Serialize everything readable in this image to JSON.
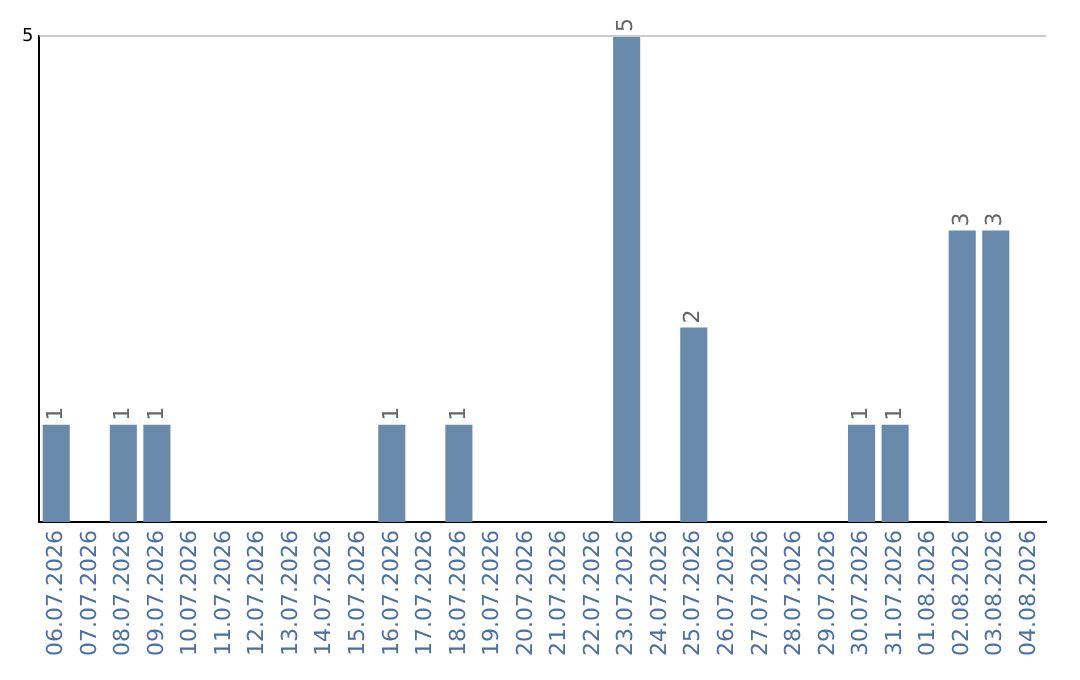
{
  "chart_data": {
    "type": "bar",
    "categories": [
      "06.07.2026",
      "07.07.2026",
      "08.07.2026",
      "09.07.2026",
      "10.07.2026",
      "11.07.2026",
      "12.07.2026",
      "13.07.2026",
      "14.07.2026",
      "15.07.2026",
      "16.07.2026",
      "17.07.2026",
      "18.07.2026",
      "19.07.2026",
      "20.07.2026",
      "21.07.2026",
      "22.07.2026",
      "23.07.2026",
      "24.07.2026",
      "25.07.2026",
      "26.07.2026",
      "27.07.2026",
      "28.07.2026",
      "29.07.2026",
      "30.07.2026",
      "31.07.2026",
      "01.08.2026",
      "02.08.2026",
      "03.08.2026",
      "04.08.2026"
    ],
    "values": [
      1,
      0,
      1,
      1,
      0,
      0,
      0,
      0,
      0,
      0,
      1,
      0,
      1,
      0,
      0,
      0,
      0,
      5,
      0,
      2,
      0,
      0,
      0,
      0,
      1,
      1,
      0,
      3,
      3,
      0
    ],
    "value_labels": [
      "1",
      null,
      "1",
      "1",
      null,
      null,
      null,
      null,
      null,
      null,
      "1",
      null,
      "1",
      null,
      null,
      null,
      null,
      "5",
      null,
      "2",
      null,
      null,
      null,
      null,
      "1",
      "1",
      null,
      "3",
      "3",
      null
    ],
    "color": "#6a8aac",
    "ylim": [
      0,
      5
    ],
    "yticks": [
      5
    ],
    "ref_lines": [
      {
        "axis": "y",
        "value": 5,
        "color": "#cccccc"
      }
    ],
    "legend": false
  }
}
